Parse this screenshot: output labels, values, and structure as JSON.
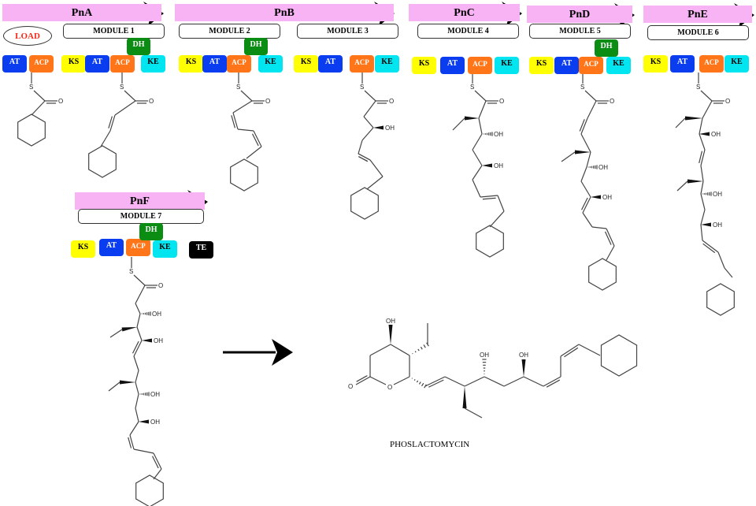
{
  "proteins": [
    "PnA",
    "PnB",
    "PnC",
    "PnD",
    "PnE",
    "PnF"
  ],
  "modules": [
    "MODULE 1",
    "MODULE 2",
    "MODULE 3",
    "MODULE 4",
    "MODULE 5",
    "MODULE 6",
    "MODULE 7"
  ],
  "load_label": "LOAD",
  "domains": {
    "KS": "KS",
    "AT": "AT",
    "ACP": "ACP",
    "KE": "KE",
    "DH": "DH",
    "TE": "TE"
  },
  "atoms": {
    "S": "S",
    "O": "O",
    "OH": "OH"
  },
  "product_name": "PHOSLACTOMYCIN",
  "colors": {
    "header": "#f7b3f4",
    "KS": "#ffff00",
    "AT": "#0a3cf0",
    "ACP": "#ff7518",
    "KE": "#00e5f0",
    "DH": "#0b8c12",
    "TE": "#000000",
    "load": "#f52a1a"
  }
}
